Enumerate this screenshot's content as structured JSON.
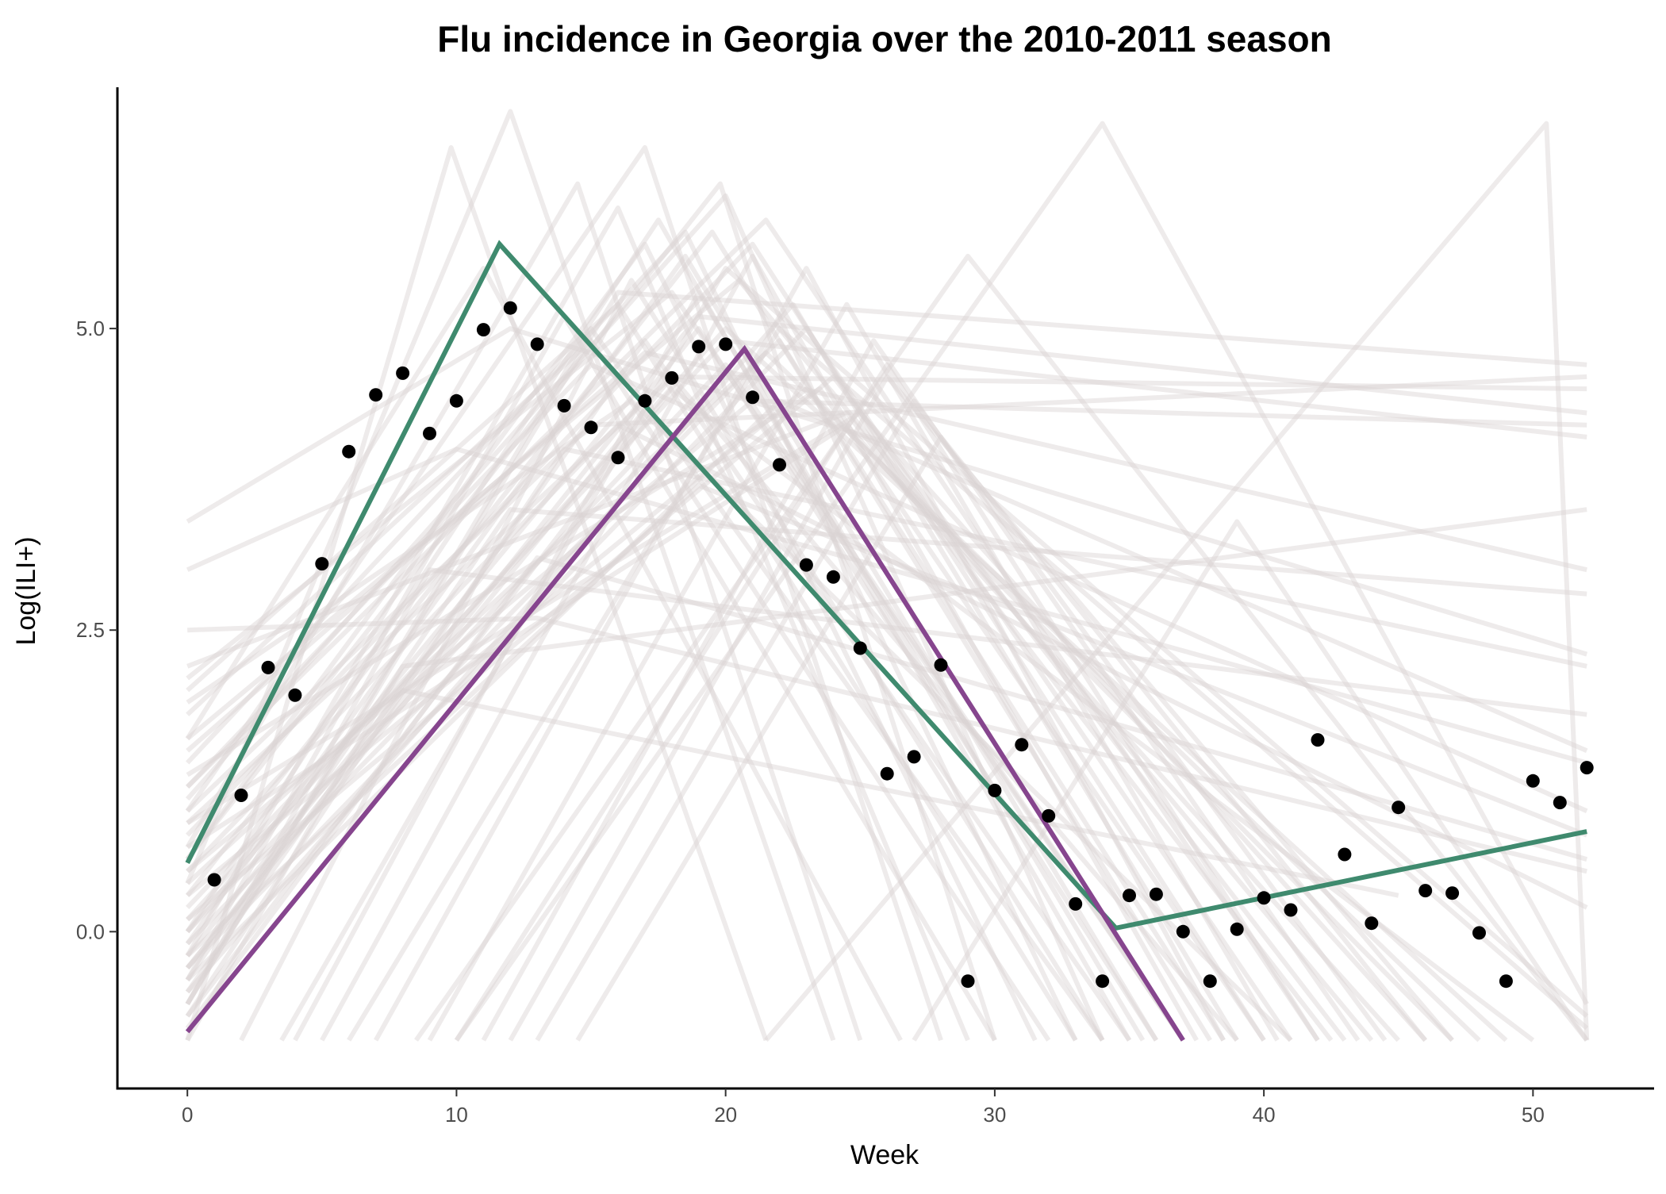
{
  "chart_data": {
    "type": "line",
    "title": "Flu incidence in Georgia over the 2010-2011 season",
    "xlabel": "Week",
    "ylabel": "Log(ILI+)",
    "xlim": [
      -2.6,
      54.5
    ],
    "ylim": [
      -1.3,
      7.0
    ],
    "x_ticks": [
      0,
      10,
      20,
      30,
      40,
      50
    ],
    "y_ticks": [
      0.0,
      2.5,
      5.0
    ],
    "x_tick_labels": [
      "0",
      "10",
      "20",
      "30",
      "40",
      "50"
    ],
    "y_tick_labels": [
      "0.0",
      "2.5",
      "5.0"
    ],
    "grid": false,
    "legend": "none",
    "colors": {
      "observed_points": "#000000",
      "trajectory_green": "#3f8a6e",
      "trajectory_purple": "#86458e",
      "sample_lines": "#d9d2d2"
    },
    "series": [
      {
        "kind": "points",
        "x": [
          1,
          2,
          3,
          4,
          5,
          6,
          7,
          8,
          9,
          10,
          11,
          12,
          13,
          14,
          15,
          16,
          17,
          18,
          19,
          20,
          21,
          22,
          23,
          24,
          25,
          26,
          27,
          28,
          29,
          30,
          31,
          32,
          33,
          34,
          35,
          36,
          37,
          38,
          39,
          40,
          41,
          42,
          43,
          44,
          45,
          46,
          47,
          48,
          49,
          50,
          51,
          52
        ],
        "y": [
          0.43,
          1.13,
          2.19,
          1.96,
          3.05,
          3.98,
          4.45,
          4.63,
          4.13,
          4.4,
          4.99,
          5.17,
          4.87,
          4.36,
          4.18,
          3.93,
          4.4,
          4.59,
          4.85,
          4.87,
          4.43,
          3.87,
          3.04,
          2.94,
          2.35,
          1.31,
          1.45,
          2.21,
          -0.41,
          1.17,
          1.55,
          0.96,
          0.23,
          -0.41,
          0.3,
          0.31,
          0.0,
          -0.41,
          0.02,
          0.28,
          0.18,
          1.59,
          0.64,
          0.07,
          1.03,
          0.34,
          0.32,
          -0.01,
          -0.41,
          1.25,
          1.07,
          1.36
        ]
      },
      {
        "kind": "line",
        "x": [
          0,
          11.6,
          34.5,
          52
        ],
        "y": [
          0.57,
          5.7,
          0.03,
          0.83
        ]
      },
      {
        "kind": "line",
        "x": [
          0,
          20.7,
          37
        ],
        "y": [
          -0.83,
          4.83,
          -0.9
        ]
      }
    ],
    "sample_trajectories": [
      {
        "x": [
          0,
          8,
          52
        ],
        "y": [
          -0.9,
          2.2,
          3.5
        ]
      },
      {
        "x": [
          0,
          12,
          52
        ],
        "y": [
          -0.4,
          3.5,
          2.8
        ]
      },
      {
        "x": [
          0,
          14,
          52
        ],
        "y": [
          -0.7,
          4.0,
          2.2
        ]
      },
      {
        "x": [
          0,
          16,
          52
        ],
        "y": [
          -0.6,
          5.3,
          4.7
        ]
      },
      {
        "x": [
          0,
          18,
          52
        ],
        "y": [
          -0.3,
          4.6,
          4.5
        ]
      },
      {
        "x": [
          0,
          19,
          52
        ],
        "y": [
          0.0,
          5.1,
          4.3
        ]
      },
      {
        "x": [
          0,
          20,
          52
        ],
        "y": [
          0.2,
          4.9,
          4.1
        ]
      },
      {
        "x": [
          0,
          21,
          52
        ],
        "y": [
          0.5,
          4.4,
          4.2
        ]
      },
      {
        "x": [
          0,
          15,
          52
        ],
        "y": [
          1.0,
          4.2,
          4.6
        ]
      },
      {
        "x": [
          0,
          17,
          52
        ],
        "y": [
          1.5,
          4.8,
          3.0
        ]
      },
      {
        "x": [
          0,
          9,
          52
        ],
        "y": [
          -0.6,
          3.0,
          1.8
        ]
      },
      {
        "x": [
          0,
          13,
          52
        ],
        "y": [
          2.5,
          2.6,
          0.5
        ]
      },
      {
        "x": [
          0,
          10,
          52
        ],
        "y": [
          3.0,
          4.0,
          1.4
        ]
      },
      {
        "x": [
          0,
          12,
          52
        ],
        "y": [
          3.4,
          5.0,
          2.3
        ]
      },
      {
        "x": [
          0,
          8,
          45
        ],
        "y": [
          -0.2,
          2.0,
          0.3
        ]
      },
      {
        "x": [
          0,
          9.8,
          21.5
        ],
        "y": [
          -0.9,
          6.5,
          -0.9
        ]
      },
      {
        "x": [
          0,
          14.5,
          25
        ],
        "y": [
          0.7,
          6.2,
          -0.9
        ]
      },
      {
        "x": [
          0,
          17,
          28
        ],
        "y": [
          1.0,
          6.5,
          -0.9
        ]
      },
      {
        "x": [
          0,
          12,
          24
        ],
        "y": [
          0.4,
          6.8,
          -0.9
        ]
      },
      {
        "x": [
          0,
          19.8,
          30
        ],
        "y": [
          0.6,
          6.2,
          -0.9
        ]
      },
      {
        "x": [
          3.5,
          20,
          52
        ],
        "y": [
          -0.9,
          5.5,
          -0.7
        ]
      },
      {
        "x": [
          6,
          22,
          52
        ],
        "y": [
          -0.9,
          5.0,
          -0.8
        ]
      },
      {
        "x": [
          0,
          17.5,
          35
        ],
        "y": [
          0.0,
          5.9,
          -0.9
        ]
      },
      {
        "x": [
          0,
          18.5,
          36
        ],
        "y": [
          -0.1,
          5.6,
          -0.9
        ]
      },
      {
        "x": [
          0,
          19.5,
          38
        ],
        "y": [
          0.3,
          5.8,
          -0.9
        ]
      },
      {
        "x": [
          0,
          21,
          40
        ],
        "y": [
          0.8,
          5.7,
          -0.9
        ]
      },
      {
        "x": [
          0,
          21.5,
          42
        ],
        "y": [
          1.2,
          5.9,
          -0.9
        ]
      },
      {
        "x": [
          0,
          20.5,
          44
        ],
        "y": [
          1.6,
          5.4,
          -0.9
        ]
      },
      {
        "x": [
          0,
          16,
          33
        ],
        "y": [
          2.0,
          5.2,
          -0.9
        ]
      },
      {
        "x": [
          0,
          15,
          32
        ],
        "y": [
          1.8,
          4.9,
          -0.9
        ]
      },
      {
        "x": [
          0,
          22.5,
          39
        ],
        "y": [
          -0.5,
          5.2,
          -0.9
        ]
      },
      {
        "x": [
          0,
          23,
          41
        ],
        "y": [
          -0.3,
          5.0,
          -0.9
        ]
      },
      {
        "x": [
          0,
          24,
          43
        ],
        "y": [
          0.1,
          4.6,
          -0.9
        ]
      },
      {
        "x": [
          0,
          25,
          46
        ],
        "y": [
          0.9,
          4.3,
          -0.9
        ]
      },
      {
        "x": [
          0,
          18,
          37
        ],
        "y": [
          2.1,
          5.3,
          -0.9
        ]
      },
      {
        "x": [
          2,
          16.5,
          34
        ],
        "y": [
          -0.9,
          5.4,
          -0.9
        ]
      },
      {
        "x": [
          4,
          19,
          35.5
        ],
        "y": [
          -0.9,
          5.3,
          -0.9
        ]
      },
      {
        "x": [
          5,
          21,
          37.5
        ],
        "y": [
          -0.9,
          5.6,
          -0.9
        ]
      },
      {
        "x": [
          7,
          23,
          38.5
        ],
        "y": [
          -0.9,
          5.5,
          -0.9
        ]
      },
      {
        "x": [
          9,
          24.5,
          40.5
        ],
        "y": [
          -0.9,
          5.2,
          -0.9
        ]
      },
      {
        "x": [
          11,
          25.5,
          43.5
        ],
        "y": [
          -0.9,
          4.9,
          -0.9
        ]
      },
      {
        "x": [
          12,
          26,
          47
        ],
        "y": [
          -0.9,
          4.6,
          -0.9
        ]
      },
      {
        "x": [
          8.5,
          29,
          52
        ],
        "y": [
          -0.9,
          5.6,
          -0.9
        ]
      },
      {
        "x": [
          0,
          20,
          34
        ],
        "y": [
          1.1,
          6.1,
          -0.9
        ]
      },
      {
        "x": [
          0,
          18.5,
          33
        ],
        "y": [
          1.4,
          5.8,
          -0.9
        ]
      },
      {
        "x": [
          0,
          17,
          31.5
        ],
        "y": [
          0.6,
          5.7,
          -0.9
        ]
      },
      {
        "x": [
          0,
          19,
          52
        ],
        "y": [
          -0.2,
          3.7,
          0.8
        ]
      },
      {
        "x": [
          0,
          16,
          52
        ],
        "y": [
          0.5,
          4.2,
          0.2
        ]
      },
      {
        "x": [
          0,
          22,
          52
        ],
        "y": [
          -0.4,
          4.4,
          1.5
        ]
      },
      {
        "x": [
          0,
          13,
          52
        ],
        "y": [
          -0.8,
          3.1,
          0.6
        ]
      },
      {
        "x": [
          0,
          15,
          52
        ],
        "y": [
          1.2,
          4.7,
          1.0
        ]
      },
      {
        "x": [
          0,
          18,
          50
        ],
        "y": [
          -0.7,
          4.5,
          -0.9
        ]
      },
      {
        "x": [
          0,
          20,
          49
        ],
        "y": [
          0.1,
          5.0,
          -0.9
        ]
      },
      {
        "x": [
          0,
          21.5,
          48
        ],
        "y": [
          -0.1,
          4.8,
          -0.9
        ]
      },
      {
        "x": [
          0,
          23,
          47
        ],
        "y": [
          0.3,
          4.5,
          -0.9
        ]
      },
      {
        "x": [
          0,
          24.5,
          45
        ],
        "y": [
          0.7,
          4.2,
          -0.9
        ]
      },
      {
        "x": [
          0,
          14,
          30
        ],
        "y": [
          -0.4,
          5.1,
          -0.9
        ]
      },
      {
        "x": [
          0,
          16,
          29
        ],
        "y": [
          -0.2,
          6.0,
          -0.9
        ]
      },
      {
        "x": [
          0,
          11,
          26.5
        ],
        "y": [
          1.6,
          5.5,
          -0.9
        ]
      },
      {
        "x": [
          10,
          26,
          42
        ],
        "y": [
          -0.9,
          4.7,
          -0.9
        ]
      },
      {
        "x": [
          13,
          27,
          44.5
        ],
        "y": [
          -0.9,
          4.4,
          -0.9
        ]
      },
      {
        "x": [
          14.5,
          28,
          46
        ],
        "y": [
          -0.9,
          4.1,
          -0.9
        ]
      },
      {
        "x": [
          10,
          34,
          52
        ],
        "y": [
          -0.9,
          6.7,
          -0.6
        ]
      },
      {
        "x": [
          21.5,
          50.5,
          52
        ],
        "y": [
          -0.9,
          6.7,
          -0.9
        ]
      },
      {
        "x": [
          27,
          39,
          52
        ],
        "y": [
          -0.9,
          3.4,
          -0.9
        ]
      },
      {
        "x": [
          0,
          15,
          34
        ],
        "y": [
          -0.6,
          5.0,
          -0.9
        ]
      },
      {
        "x": [
          0,
          17,
          35
        ],
        "y": [
          -0.5,
          4.9,
          -0.9
        ]
      },
      {
        "x": [
          0,
          19,
          36
        ],
        "y": [
          -0.3,
          5.0,
          -0.9
        ]
      },
      {
        "x": [
          0,
          20,
          37
        ],
        "y": [
          0.0,
          4.7,
          -0.9
        ]
      },
      {
        "x": [
          0,
          22,
          38.5
        ],
        "y": [
          0.4,
          4.9,
          -0.9
        ]
      },
      {
        "x": [
          0,
          18,
          39
        ],
        "y": [
          0.9,
          4.6,
          -0.9
        ]
      },
      {
        "x": [
          0,
          23.5,
          40
        ],
        "y": [
          1.3,
          4.5,
          -0.9
        ]
      },
      {
        "x": [
          0,
          16.5,
          41
        ],
        "y": [
          1.9,
          4.4,
          -0.9
        ]
      },
      {
        "x": [
          0,
          24.5,
          42.5
        ],
        "y": [
          2.2,
          4.3,
          -0.9
        ]
      }
    ]
  }
}
